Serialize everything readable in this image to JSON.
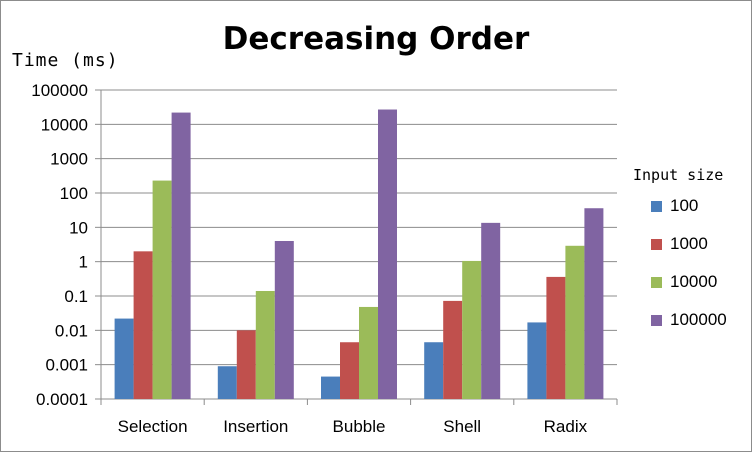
{
  "chart_data": {
    "type": "bar",
    "title": "Decreasing Order",
    "ylabel": "Time (ms)",
    "yscale": "log",
    "ylim": [
      0.0001,
      100000
    ],
    "yticks": [
      "0.0001",
      "0.001",
      "0.01",
      "0.1",
      "1",
      "10",
      "100",
      "1000",
      "10000",
      "100000"
    ],
    "categories": [
      "Selection",
      "Insertion",
      "Bubble",
      "Shell",
      "Radix"
    ],
    "legend_title": "Input size",
    "legend_position": "right",
    "grid": "horizontal",
    "series": [
      {
        "name": "100",
        "color": "#4a7ebb",
        "values": [
          0.022,
          0.0009,
          0.00045,
          0.0045,
          0.017
        ]
      },
      {
        "name": "1000",
        "color": "#c0504d",
        "values": [
          2.0,
          0.01,
          0.0045,
          0.072,
          0.36
        ]
      },
      {
        "name": "10000",
        "color": "#9bbb59",
        "values": [
          230,
          0.14,
          0.048,
          1.05,
          2.9
        ]
      },
      {
        "name": "100000",
        "color": "#8064a2",
        "values": [
          22000,
          4.0,
          27000,
          13.5,
          36
        ]
      }
    ]
  }
}
